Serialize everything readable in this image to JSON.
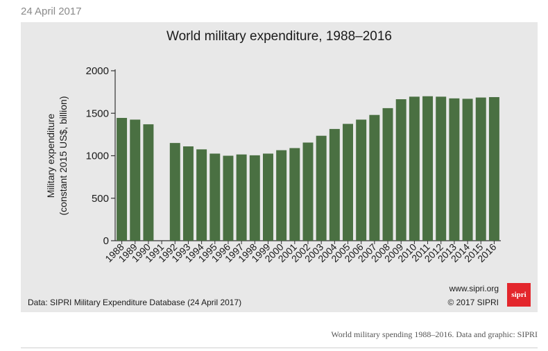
{
  "header": {
    "date": "24 April 2017"
  },
  "chart_data": {
    "type": "bar",
    "title": "World military expenditure, 1988–2016",
    "ylabel_line1": "Military expenditure",
    "ylabel_line2": "(constant 2015 US$, billion)",
    "xlabel": "",
    "ylim": [
      0,
      2000
    ],
    "yticks": [
      0,
      500,
      1000,
      1500,
      2000
    ],
    "categories": [
      "1988",
      "1989",
      "1990",
      "1991",
      "1992",
      "1993",
      "1994",
      "1995",
      "1996",
      "1997",
      "1998",
      "1999",
      "2000",
      "2001",
      "2002",
      "2003",
      "2004",
      "2005",
      "2006",
      "2007",
      "2008",
      "2009",
      "2010",
      "2011",
      "2012",
      "2013",
      "2014",
      "2015",
      "2016"
    ],
    "values": [
      1445,
      1425,
      1370,
      null,
      1150,
      1110,
      1075,
      1025,
      1000,
      1015,
      1005,
      1025,
      1065,
      1090,
      1155,
      1235,
      1315,
      1375,
      1425,
      1480,
      1560,
      1665,
      1695,
      1700,
      1695,
      1675,
      1670,
      1685,
      1690
    ],
    "bar_color": "#4a7042",
    "grid": false,
    "legend": "none"
  },
  "footer": {
    "source": "Data: SIPRI Military Expenditure Database (24 April 2017)",
    "website": "www.sipri.org",
    "copyright": "© 2017 SIPRI",
    "logo_text": "sipri"
  },
  "caption": "World military spending 1988–2016. Data and graphic: SIPRI"
}
